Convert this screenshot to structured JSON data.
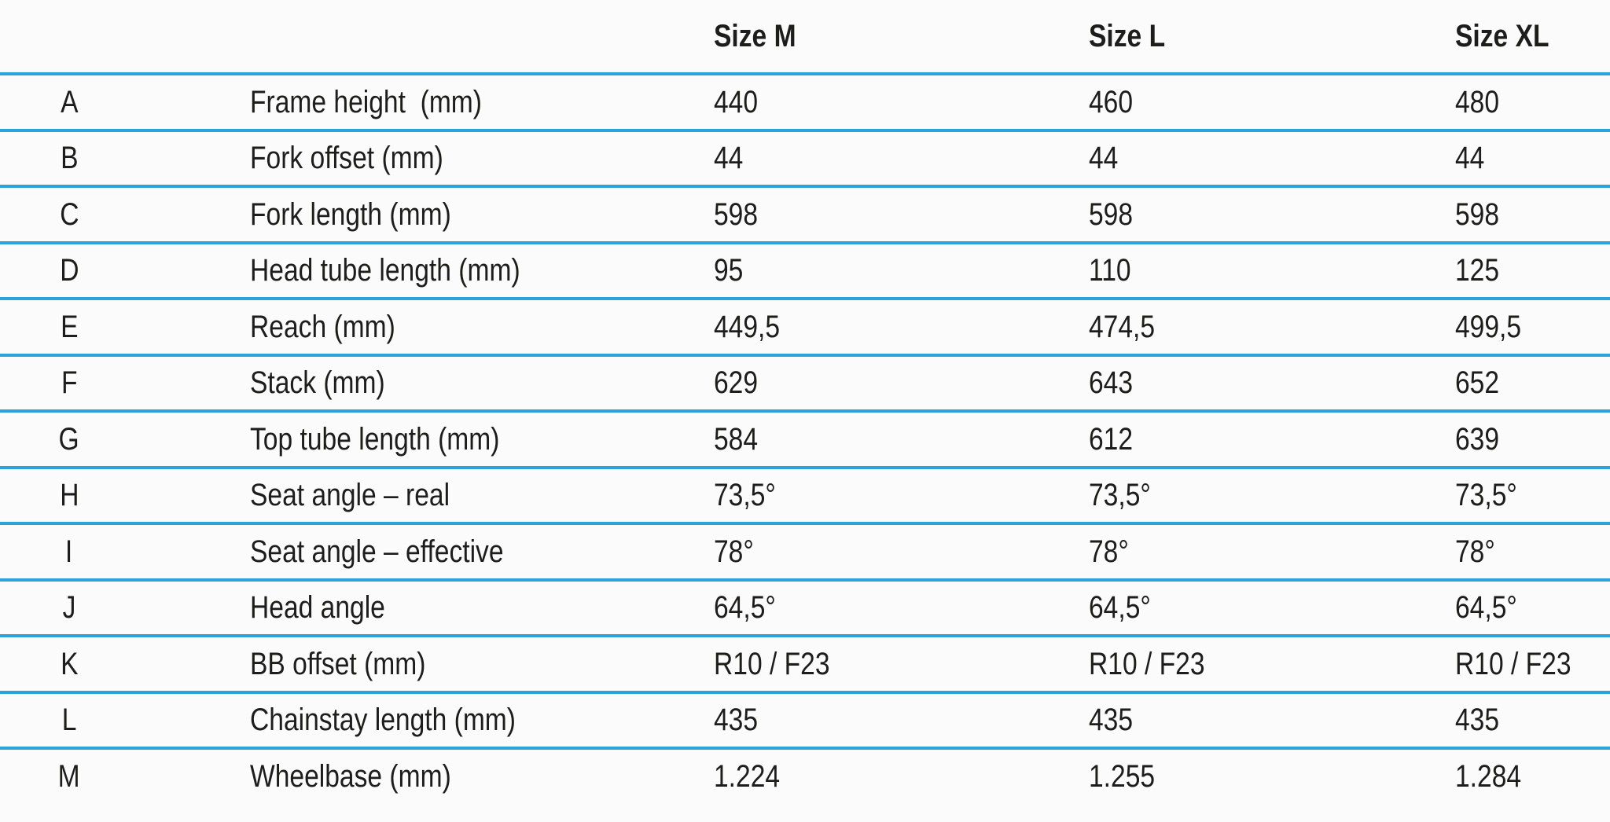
{
  "table": {
    "size_headers": [
      "Size M",
      "Size L",
      "Size XL"
    ],
    "rows": [
      {
        "key": "A",
        "label": "Frame height  (mm)",
        "values": [
          "440",
          "460",
          "480"
        ]
      },
      {
        "key": "B",
        "label": "Fork offset (mm)",
        "values": [
          "44",
          "44",
          "44"
        ]
      },
      {
        "key": "C",
        "label": "Fork length (mm)",
        "values": [
          "598",
          "598",
          "598"
        ]
      },
      {
        "key": "D",
        "label": "Head tube length (mm)",
        "values": [
          "95",
          "110",
          "125"
        ]
      },
      {
        "key": "E",
        "label": "Reach (mm)",
        "values": [
          "449,5",
          "474,5",
          "499,5"
        ]
      },
      {
        "key": "F",
        "label": "Stack (mm)",
        "values": [
          "629",
          "643",
          "652"
        ]
      },
      {
        "key": "G",
        "label": "Top tube length (mm)",
        "values": [
          "584",
          "612",
          "639"
        ]
      },
      {
        "key": "H",
        "label": "Seat angle – real",
        "values": [
          "73,5°",
          "73,5°",
          "73,5°"
        ]
      },
      {
        "key": "I",
        "label": "Seat angle – effective",
        "values": [
          "78°",
          "78°",
          "78°"
        ]
      },
      {
        "key": "J",
        "label": "Head angle",
        "values": [
          "64,5°",
          "64,5°",
          "64,5°"
        ]
      },
      {
        "key": "K",
        "label": "BB offset (mm)",
        "values": [
          "R10 / F23",
          "R10 / F23",
          "R10 / F23"
        ]
      },
      {
        "key": "L",
        "label": "Chainstay length (mm)",
        "values": [
          "435",
          "435",
          "435"
        ]
      },
      {
        "key": "M",
        "label": "Wheelbase (mm)",
        "values": [
          "1.224",
          "1.255",
          "1.284"
        ]
      }
    ],
    "colors": {
      "divider": "#2aa3dc",
      "text": "#1d1d1b",
      "background": "#fbfbfb"
    }
  }
}
